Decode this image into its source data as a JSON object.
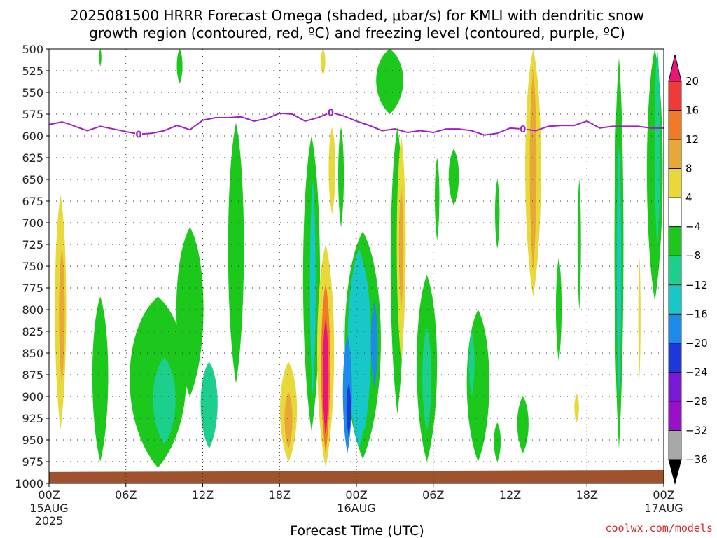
{
  "chart_data": {
    "type": "heatmap",
    "title_line1": "2025081500 HRRR Forecast Omega (shaded, μbar/s) for KMLI with dendritic snow",
    "title_line2": "growth region (contoured, red, ºC) and freezing level (contoured, purple, ºC)",
    "xlabel": "Forecast Time (UTC)",
    "credit": "coolwx.com/models",
    "y_axis": {
      "ticks": [
        500,
        525,
        550,
        575,
        600,
        625,
        650,
        675,
        700,
        725,
        750,
        775,
        800,
        825,
        850,
        875,
        900,
        925,
        950,
        975,
        1000
      ],
      "range": [
        500,
        1000
      ],
      "inverted": true
    },
    "x_axis": {
      "range_hours": [
        0,
        48
      ],
      "tick_hours": [
        0,
        6,
        12,
        18,
        24,
        30,
        36,
        42,
        48
      ],
      "tick_labels": [
        "00Z",
        "06Z",
        "12Z",
        "18Z",
        "00Z",
        "06Z",
        "12Z",
        "18Z",
        "00Z"
      ],
      "date_labels": [
        {
          "hour": 0,
          "lines": [
            "15AUG",
            "2025"
          ]
        },
        {
          "hour": 24,
          "lines": [
            "16AUG"
          ]
        },
        {
          "hour": 48,
          "lines": [
            "17AUG"
          ]
        }
      ]
    },
    "grid": true,
    "colorbar": {
      "labels": [
        "20",
        "16",
        "12",
        "8",
        "4",
        "−4",
        "−8",
        "−12",
        "−16",
        "−20",
        "−24",
        "−28",
        "−32",
        "−36"
      ],
      "colors": [
        "#e8157a",
        "#f03a3a",
        "#f07a28",
        "#e8a838",
        "#e8d83a",
        "#ffffff",
        "#1cc81c",
        "#1ccf8c",
        "#18c8c8",
        "#1c8ce8",
        "#1c38d8",
        "#7a18d8",
        "#9a10c8",
        "#a8a8a8",
        "#000000"
      ]
    },
    "freezing_level": {
      "label": "0",
      "hours": [
        0,
        1,
        1.5,
        2,
        3,
        4,
        5,
        6,
        7,
        8,
        9,
        10,
        11,
        12,
        13,
        14,
        15,
        16,
        17,
        18,
        19,
        20,
        21,
        22,
        23,
        24,
        25,
        26,
        27,
        28,
        29,
        30,
        31,
        32,
        33,
        34,
        35,
        36,
        37,
        38,
        39,
        40,
        41,
        42,
        43,
        44,
        45,
        46,
        47,
        48
      ],
      "pressure": [
        587,
        584,
        586,
        589,
        594,
        589,
        592,
        595,
        598,
        597,
        594,
        588,
        593,
        582,
        579,
        579,
        578,
        583,
        580,
        574,
        575,
        583,
        579,
        573,
        577,
        583,
        588,
        594,
        592,
        596,
        594,
        596,
        592,
        592,
        594,
        599,
        597,
        591,
        592,
        594,
        589,
        588,
        588,
        583,
        591,
        589,
        589,
        589,
        591,
        591
      ],
      "label_hours": [
        7,
        22,
        37
      ]
    },
    "omega_regions": [
      {
        "hour": 0.9,
        "p_top": 668,
        "p_bot": 938,
        "width_h": 1.0,
        "value": 6
      },
      {
        "hour": 1.0,
        "p_top": 730,
        "p_bot": 885,
        "width_h": 0.5,
        "value": 10
      },
      {
        "hour": 4.0,
        "p_top": 785,
        "p_bot": 975,
        "width_h": 1.4,
        "value": -6
      },
      {
        "hour": 8.5,
        "p_top": 785,
        "p_bot": 982,
        "width_h": 5.0,
        "value": -6
      },
      {
        "hour": 9.0,
        "p_top": 855,
        "p_bot": 955,
        "width_h": 2.0,
        "value": -10
      },
      {
        "hour": 11.0,
        "p_top": 705,
        "p_bot": 900,
        "width_h": 2.4,
        "value": -6
      },
      {
        "hour": 12.5,
        "p_top": 860,
        "p_bot": 960,
        "width_h": 1.5,
        "value": -10
      },
      {
        "hour": 14.6,
        "p_top": 585,
        "p_bot": 885,
        "width_h": 1.4,
        "value": -6
      },
      {
        "hour": 10.2,
        "p_top": 500,
        "p_bot": 540,
        "width_h": 0.5,
        "value": -6
      },
      {
        "hour": 4.0,
        "p_top": 500,
        "p_bot": 520,
        "width_h": 0.2,
        "value": -6
      },
      {
        "hour": 18.7,
        "p_top": 860,
        "p_bot": 975,
        "width_h": 1.5,
        "value": 6
      },
      {
        "hour": 18.7,
        "p_top": 895,
        "p_bot": 960,
        "width_h": 0.7,
        "value": 10
      },
      {
        "hour": 20.5,
        "p_top": 600,
        "p_bot": 940,
        "width_h": 1.5,
        "value": -6
      },
      {
        "hour": 20.6,
        "p_top": 650,
        "p_bot": 900,
        "width_h": 0.5,
        "value": -12
      },
      {
        "hour": 21.4,
        "p_top": 500,
        "p_bot": 530,
        "width_h": 0.4,
        "value": 6
      },
      {
        "hour": 21.6,
        "p_top": 725,
        "p_bot": 982,
        "width_h": 1.5,
        "value": 6
      },
      {
        "hour": 21.6,
        "p_top": 770,
        "p_bot": 965,
        "width_h": 0.8,
        "value": 14
      },
      {
        "hour": 21.6,
        "p_top": 810,
        "p_bot": 945,
        "width_h": 0.5,
        "value": 20
      },
      {
        "hour": 22.1,
        "p_top": 590,
        "p_bot": 690,
        "width_h": 0.6,
        "value": 6
      },
      {
        "hour": 22.8,
        "p_top": 590,
        "p_bot": 705,
        "width_h": 0.5,
        "value": -6
      },
      {
        "hour": 24.5,
        "p_top": 710,
        "p_bot": 972,
        "width_h": 3.2,
        "value": -6
      },
      {
        "hour": 24.2,
        "p_top": 730,
        "p_bot": 960,
        "width_h": 2.0,
        "value": -12
      },
      {
        "hour": 24.6,
        "p_top": 750,
        "p_bot": 940,
        "width_h": 1.2,
        "value": -14
      },
      {
        "hour": 23.3,
        "p_top": 830,
        "p_bot": 965,
        "width_h": 0.8,
        "value": -16
      },
      {
        "hour": 23.4,
        "p_top": 885,
        "p_bot": 945,
        "width_h": 0.4,
        "value": -22
      },
      {
        "hour": 25.4,
        "p_top": 790,
        "p_bot": 890,
        "width_h": 0.6,
        "value": -16
      },
      {
        "hour": 26.6,
        "p_top": 500,
        "p_bot": 575,
        "width_h": 2.4,
        "value": -6
      },
      {
        "hour": 27.2,
        "p_top": 590,
        "p_bot": 920,
        "width_h": 1.2,
        "value": -6
      },
      {
        "hour": 27.5,
        "p_top": 600,
        "p_bot": 860,
        "width_h": 0.8,
        "value": 6
      },
      {
        "hour": 27.5,
        "p_top": 660,
        "p_bot": 800,
        "width_h": 0.4,
        "value": 10
      },
      {
        "hour": 29.5,
        "p_top": 760,
        "p_bot": 975,
        "width_h": 1.8,
        "value": -6
      },
      {
        "hour": 29.5,
        "p_top": 820,
        "p_bot": 940,
        "width_h": 0.8,
        "value": -10
      },
      {
        "hour": 30.3,
        "p_top": 625,
        "p_bot": 720,
        "width_h": 0.4,
        "value": -6
      },
      {
        "hour": 31.6,
        "p_top": 615,
        "p_bot": 680,
        "width_h": 0.9,
        "value": -6
      },
      {
        "hour": 33.5,
        "p_top": 800,
        "p_bot": 975,
        "width_h": 2.0,
        "value": -6
      },
      {
        "hour": 33.0,
        "p_top": 825,
        "p_bot": 900,
        "width_h": 0.5,
        "value": -10
      },
      {
        "hour": 35.0,
        "p_top": 650,
        "p_bot": 730,
        "width_h": 0.4,
        "value": -6
      },
      {
        "hour": 35.0,
        "p_top": 930,
        "p_bot": 975,
        "width_h": 0.6,
        "value": -6
      },
      {
        "hour": 37.0,
        "p_top": 900,
        "p_bot": 965,
        "width_h": 1.0,
        "value": -6
      },
      {
        "hour": 37.8,
        "p_top": 500,
        "p_bot": 785,
        "width_h": 1.4,
        "value": 6
      },
      {
        "hour": 37.8,
        "p_top": 525,
        "p_bot": 755,
        "width_h": 0.6,
        "value": 11
      },
      {
        "hour": 39.8,
        "p_top": 740,
        "p_bot": 860,
        "width_h": 0.5,
        "value": -6
      },
      {
        "hour": 41.4,
        "p_top": 650,
        "p_bot": 800,
        "width_h": 0.3,
        "value": -6
      },
      {
        "hour": 41.2,
        "p_top": 897,
        "p_bot": 930,
        "width_h": 0.4,
        "value": 6
      },
      {
        "hour": 44.5,
        "p_top": 510,
        "p_bot": 960,
        "width_h": 0.8,
        "value": -6
      },
      {
        "hour": 44.5,
        "p_top": 610,
        "p_bot": 900,
        "width_h": 0.4,
        "value": -12
      },
      {
        "hour": 46.1,
        "p_top": 740,
        "p_bot": 880,
        "width_h": 0.2,
        "value": 6
      },
      {
        "hour": 47.3,
        "p_top": 500,
        "p_bot": 790,
        "width_h": 1.4,
        "value": -6
      },
      {
        "hour": 47.5,
        "p_top": 500,
        "p_bot": 730,
        "width_h": 0.5,
        "value": -10
      }
    ]
  }
}
